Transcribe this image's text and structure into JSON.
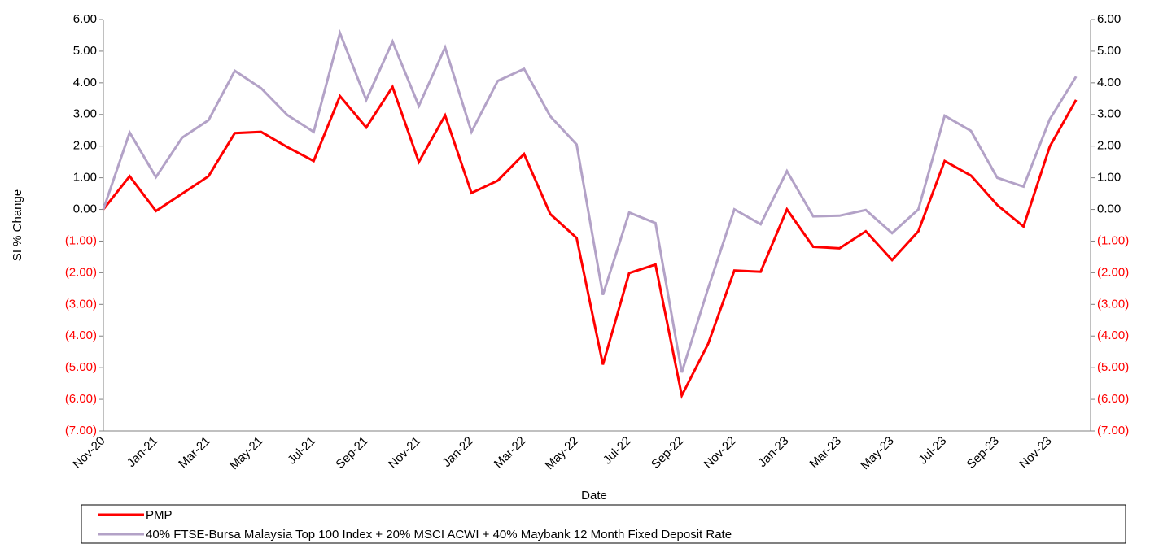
{
  "chart_data": {
    "type": "line",
    "y_label": "SI % Change",
    "x_label": "Date",
    "categories": [
      "Nov-20",
      null,
      "Jan-21",
      null,
      "Mar-21",
      null,
      "May-21",
      null,
      "Jul-21",
      null,
      "Sep-21",
      null,
      "Nov-21",
      null,
      "Jan-22",
      null,
      "Mar-22",
      null,
      "May-22",
      null,
      "Jul-22",
      null,
      "Sep-22",
      null,
      "Nov-22",
      null,
      "Jan-23",
      null,
      "Mar-23",
      null,
      "May-23",
      null,
      "Jul-23",
      null,
      "Sep-23",
      null,
      "Nov-23",
      null
    ],
    "series": [
      {
        "name": "PMP",
        "color": "#ff0000",
        "width": 3,
        "values": [
          0.0,
          1.05,
          -0.05,
          0.5,
          1.05,
          2.41,
          2.45,
          1.97,
          1.53,
          3.58,
          2.59,
          3.87,
          1.5,
          2.97,
          0.52,
          0.91,
          1.75,
          -0.15,
          -0.9,
          -4.9,
          -2.01,
          -1.74,
          -5.88,
          -4.25,
          -1.93,
          -1.97,
          0.0,
          -1.18,
          -1.23,
          -0.69,
          -1.6,
          -0.69,
          1.53,
          1.07,
          0.14,
          -0.54,
          1.99,
          3.46
        ]
      },
      {
        "name": "40% FTSE-Bursa Malaysia Top 100 Index + 20% MSCI ACWI + 40% Maybank 12 Month Fixed Deposit Rate",
        "color": "#b3a2c7",
        "width": 3,
        "values": [
          0.0,
          2.43,
          1.02,
          2.27,
          2.82,
          4.38,
          3.83,
          2.98,
          2.45,
          5.57,
          3.46,
          5.3,
          3.27,
          5.12,
          2.45,
          4.06,
          4.44,
          2.94,
          2.05,
          -2.7,
          -0.1,
          -0.43,
          -5.15,
          -2.5,
          0.0,
          -0.47,
          1.21,
          -0.22,
          -0.2,
          -0.02,
          -0.75,
          0.0,
          2.96,
          2.48,
          1.0,
          0.72,
          2.85,
          4.2
        ]
      }
    ],
    "ylim": [
      -7,
      6
    ],
    "yticks": [
      {
        "value": 6,
        "label": "6.00"
      },
      {
        "value": 5,
        "label": "5.00"
      },
      {
        "value": 4,
        "label": "4.00"
      },
      {
        "value": 3,
        "label": "3.00"
      },
      {
        "value": 2,
        "label": "2.00"
      },
      {
        "value": 1,
        "label": "1.00"
      },
      {
        "value": 0,
        "label": "0.00"
      },
      {
        "value": -1,
        "label": "(1.00)"
      },
      {
        "value": -2,
        "label": "(2.00)"
      },
      {
        "value": -3,
        "label": "(3.00)"
      },
      {
        "value": -4,
        "label": "(4.00)"
      },
      {
        "value": -5,
        "label": "(5.00)"
      },
      {
        "value": -6,
        "label": "(6.00)"
      },
      {
        "value": -7,
        "label": "(7.00)"
      }
    ],
    "y2lim": [
      -7,
      6
    ],
    "y2ticks": [
      {
        "value": 6,
        "label": "6.00"
      },
      {
        "value": 5,
        "label": "5.00"
      },
      {
        "value": 4,
        "label": "4.00"
      },
      {
        "value": 3,
        "label": "3.00"
      },
      {
        "value": 2,
        "label": "2.00"
      },
      {
        "value": 1,
        "label": "1.00"
      },
      {
        "value": 0,
        "label": "0.00"
      },
      {
        "value": -1,
        "label": "(1.00)"
      },
      {
        "value": -2,
        "label": "(2.00)"
      },
      {
        "value": -3,
        "label": "(3.00)"
      },
      {
        "value": -4,
        "label": "(4.00)"
      },
      {
        "value": -5,
        "label": "(5.00)"
      },
      {
        "value": -6,
        "label": "(6.00)"
      },
      {
        "value": -7,
        "label": "(7.00)"
      }
    ],
    "negative_label_color": "#ff0000",
    "grid": false,
    "legend": "bottom"
  }
}
